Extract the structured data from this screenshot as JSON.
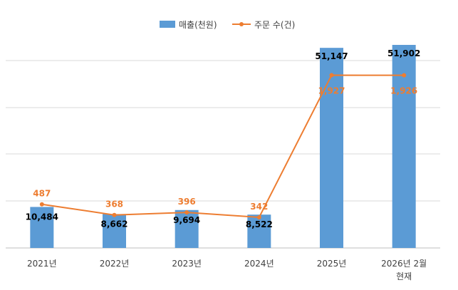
{
  "colors": {
    "bar": "#5B9BD5",
    "line": "#ED7D31",
    "grid": "#D9D9D9",
    "axis": "#BFBFBF"
  },
  "legend": {
    "bar_label": "매출(천원)",
    "line_label": "주문 수(건)"
  },
  "chart_data": {
    "type": "bar",
    "combo": "bar-line",
    "categories": [
      [
        "2021년"
      ],
      [
        "2022년"
      ],
      [
        "2023년"
      ],
      [
        "2024년"
      ],
      [
        "2025년"
      ],
      [
        "2026년 2월",
        "현재"
      ]
    ],
    "series": [
      {
        "name": "매출(천원)",
        "type": "bar",
        "values": [
          10484,
          8662,
          9694,
          8522,
          51147,
          51902
        ],
        "labels": [
          "10,484",
          "8,662",
          "9,694",
          "8,522",
          "51,147",
          "51,902"
        ]
      },
      {
        "name": "주문 수(건)",
        "type": "line",
        "values": [
          487,
          368,
          396,
          342,
          1927,
          1926
        ],
        "labels": [
          "487",
          "368",
          "396",
          "342",
          "1,927",
          "1,926"
        ]
      }
    ],
    "bar_ylim": [
      0,
      55000
    ],
    "line_ylim": [
      0,
      2400
    ],
    "grid": true,
    "legend_position": "top-center"
  }
}
